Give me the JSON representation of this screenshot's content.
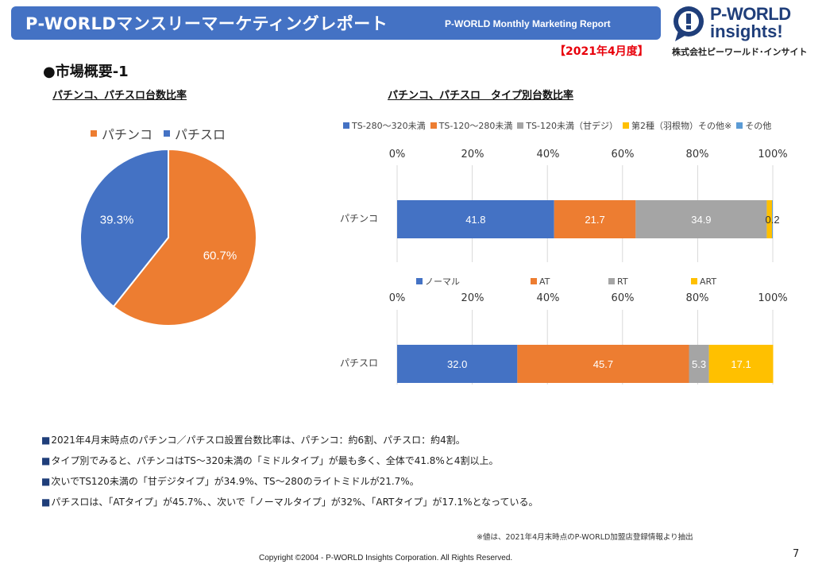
{
  "header": {
    "title": "P-WORLDマンスリーマーケティングレポート",
    "subtitle": "P-WORLD Monthly Marketing Report",
    "period": "【2021年4月度】"
  },
  "logo": {
    "line1": "P-WORLD",
    "line2": "insights!",
    "badge_char": "!",
    "corp": "株式会社ピーワールド･インサイト"
  },
  "section_title": "●市場概要-1",
  "pie": {
    "heading": "パチンコ、パチスロ台数比率",
    "chart_data": {
      "type": "pie",
      "categories": [
        "パチンコ",
        "パチスロ"
      ],
      "values": [
        60.7,
        39.3
      ],
      "labels": [
        "60.7%",
        "39.3%"
      ],
      "colors": [
        "#ed7d31",
        "#4472c4"
      ],
      "legend": "top"
    }
  },
  "bars": {
    "heading": "パチンコ、パチスロ　タイプ別台数比率",
    "axis_ticks": [
      "0%",
      "20%",
      "40%",
      "60%",
      "80%",
      "100%"
    ],
    "chart_data": [
      {
        "type": "bar",
        "orientation": "horizontal",
        "stacked": true,
        "category": "パチンコ",
        "series": [
          {
            "name": "TS-280～320未満",
            "value": 41.8,
            "color": "#4472c4",
            "label": "41.8"
          },
          {
            "name": "TS-120～280未満",
            "value": 21.7,
            "color": "#ed7d31",
            "label": "21.7"
          },
          {
            "name": "TS-120未満（甘デジ）",
            "value": 34.9,
            "color": "#a5a5a5",
            "label": "34.9"
          },
          {
            "name": "第2種（羽根物）その他※",
            "value": 1.4,
            "color": "#ffc000",
            "label": ""
          },
          {
            "name": "その他",
            "value": 0.2,
            "color": "#5b9bd5",
            "label": "0.2"
          }
        ],
        "xlim": [
          0,
          100
        ],
        "legend": "top"
      },
      {
        "type": "bar",
        "orientation": "horizontal",
        "stacked": true,
        "category": "パチスロ",
        "series": [
          {
            "name": "ノーマル",
            "value": 32.0,
            "color": "#4472c4",
            "label": "32.0"
          },
          {
            "name": "AT",
            "value": 45.7,
            "color": "#ed7d31",
            "label": "45.7"
          },
          {
            "name": "RT",
            "value": 5.3,
            "color": "#a5a5a5",
            "label": "5.3"
          },
          {
            "name": "ART",
            "value": 17.1,
            "color": "#ffc000",
            "label": "17.1"
          }
        ],
        "xlim": [
          0,
          100
        ],
        "legend": "top"
      }
    ]
  },
  "bullets": [
    "2021年4月末時点のパチンコ／パチスロ設置台数比率は、パチンコ：約6割、パチスロ：約4割。",
    "タイプ別でみると、パチンコはTS～320未満の「ミドルタイプ」が最も多く、全体で41.8%と4割以上。",
    "次いでTS120未満の「甘デジタイプ」が34.9%、TS～280のライトミドルが21.7%。",
    "パチスロは、「ATタイプ」が45.7%、、次いで「ノーマルタイプ」が32%、「ARTタイプ」が17.1%となっている。"
  ],
  "note": "※値は、2021年4月末時点のP-WORLD加盟店登録情報より抽出",
  "copyright": "Copyright ©2004 -  P-WORLD Insights Corporation. All Rights Reserved.",
  "page_number": "7"
}
